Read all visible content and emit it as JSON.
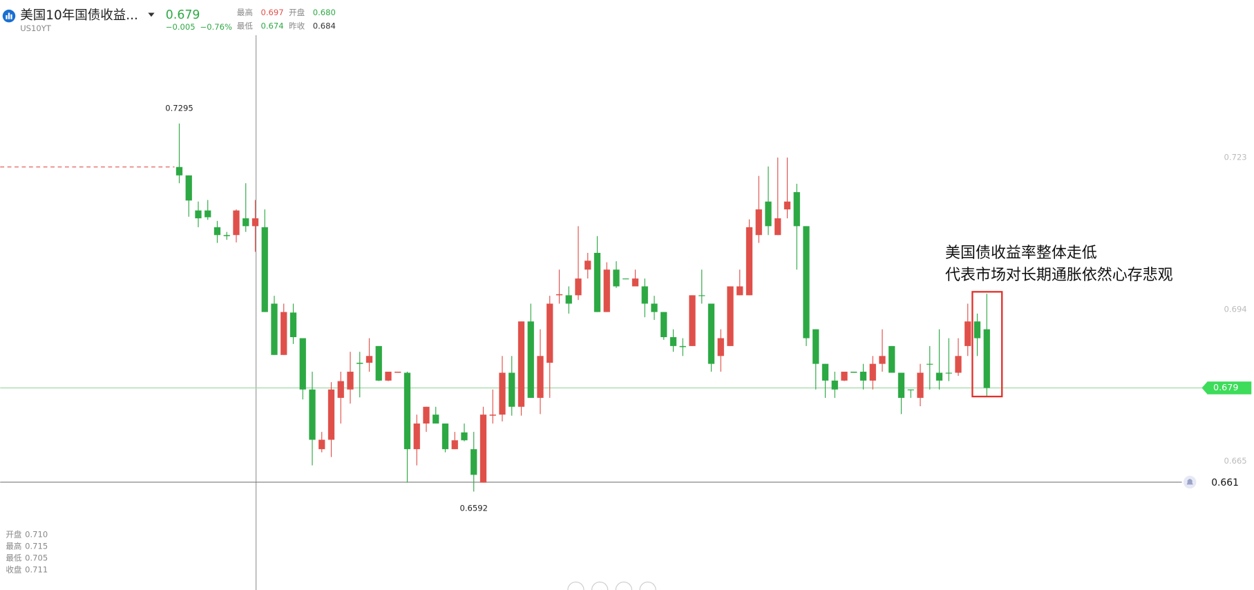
{
  "chart_data": {
    "type": "candlestick",
    "quote": {
      "title": "美国10年国债收益...",
      "symbol": "US10YT",
      "price": "0.679",
      "change": "−0.005",
      "change_pct": "−0.76%",
      "stats": [
        {
          "label": "最高",
          "value": "0.697",
          "color": "#e0504a"
        },
        {
          "label": "开盘",
          "value": "0.680",
          "color": "#2da944"
        },
        {
          "label": "最低",
          "value": "0.674",
          "color": "#2da944"
        },
        {
          "label": "昨收",
          "value": "0.684",
          "color": "#333333"
        }
      ]
    },
    "crosshair": [
      {
        "label": "开盘",
        "value": "0.710"
      },
      {
        "label": "最高",
        "value": "0.715"
      },
      {
        "label": "最低",
        "value": "0.705"
      },
      {
        "label": "收盘",
        "value": "0.711"
      }
    ],
    "annotation": [
      "美国债收益率整体走低",
      "代表市场对长期通胀依然心存悲观"
    ],
    "up_color": "#e0504a",
    "down_color": "#2da944",
    "ylim": [
      0.6404,
      0.7531
    ],
    "yticks": [
      0.723,
      0.694,
      0.665
    ],
    "alert_line": 0.661,
    "open": [
      0.7212,
      0.7196,
      0.7129,
      0.7129,
      0.7097,
      0.7082,
      0.7082,
      0.7114,
      0.7099,
      0.7097,
      0.6951,
      0.6853,
      0.6934,
      0.6885,
      0.6787,
      0.6673,
      0.6691,
      0.6771,
      0.6787,
      0.6838,
      0.6838,
      0.687,
      0.6804,
      0.6819,
      0.6819,
      0.6673,
      0.6722,
      0.6739,
      0.6722,
      0.6673,
      0.6705,
      0.6673,
      0.6609,
      0.6737,
      0.6739,
      0.6819,
      0.6754,
      0.6917,
      0.6771,
      0.6838,
      0.6967,
      0.6967,
      0.6967,
      0.7016,
      0.7048,
      0.6935,
      0.7016,
      0.6999,
      0.6984,
      0.6984,
      0.6951,
      0.6935,
      0.6887,
      0.687,
      0.687,
      0.6967,
      0.6951,
      0.6851,
      0.687,
      0.6967,
      0.6967,
      0.7082,
      0.7146,
      0.7082,
      0.7131,
      0.7164,
      0.7099,
      0.6902,
      0.6836,
      0.6804,
      0.6804,
      0.6821,
      0.6821,
      0.6804,
      0.6836,
      0.687,
      0.6819,
      0.6787,
      0.6771,
      0.6836,
      0.6819,
      0.6819,
      0.6819,
      0.687,
      0.6917,
      0.6902
    ],
    "high": [
      0.7295,
      0.7196,
      0.7146,
      0.7149,
      0.7109,
      0.7088,
      0.7131,
      0.7181,
      0.7149,
      0.7131,
      0.6966,
      0.6951,
      0.6951,
      0.6885,
      0.6821,
      0.6706,
      0.6801,
      0.6821,
      0.6859,
      0.6859,
      0.6885,
      0.687,
      0.6821,
      0.6821,
      0.6821,
      0.6739,
      0.6754,
      0.6754,
      0.6722,
      0.6706,
      0.6722,
      0.6706,
      0.6754,
      0.6787,
      0.6851,
      0.6851,
      0.6917,
      0.6951,
      0.6902,
      0.6966,
      0.7016,
      0.6984,
      0.7099,
      0.7048,
      0.708,
      0.703,
      0.7032,
      0.6999,
      0.7016,
      0.6999,
      0.6966,
      0.6935,
      0.6902,
      0.6885,
      0.6967,
      0.7016,
      0.6951,
      0.6902,
      0.6984,
      0.7016,
      0.7112,
      0.7195,
      0.7213,
      0.723,
      0.723,
      0.718,
      0.7099,
      0.6902,
      0.6836,
      0.6821,
      0.6821,
      0.6821,
      0.6836,
      0.6851,
      0.6902,
      0.687,
      0.6819,
      0.6787,
      0.6836,
      0.687,
      0.6902,
      0.6885,
      0.6885,
      0.6951,
      0.6932,
      0.697
    ],
    "low": [
      0.7181,
      0.7117,
      0.7097,
      0.7111,
      0.7067,
      0.7073,
      0.7068,
      0.7088,
      0.705,
      0.6935,
      0.6853,
      0.6853,
      0.6874,
      0.6768,
      0.6642,
      0.6667,
      0.6658,
      0.6722,
      0.676,
      0.6772,
      0.6821,
      0.6803,
      0.6803,
      0.6819,
      0.6609,
      0.6642,
      0.6706,
      0.6722,
      0.6667,
      0.6673,
      0.6688,
      0.6592,
      0.6609,
      0.6722,
      0.6726,
      0.6737,
      0.6737,
      0.6771,
      0.674,
      0.6771,
      0.6951,
      0.6932,
      0.6958,
      0.6999,
      0.6935,
      0.6935,
      0.6981,
      0.6998,
      0.6984,
      0.6925,
      0.692,
      0.6882,
      0.6859,
      0.6851,
      0.687,
      0.6951,
      0.6821,
      0.6821,
      0.687,
      0.6967,
      0.6967,
      0.7067,
      0.7082,
      0.7082,
      0.7114,
      0.7016,
      0.687,
      0.6787,
      0.6771,
      0.6771,
      0.6803,
      0.6819,
      0.6787,
      0.6787,
      0.6821,
      0.6819,
      0.674,
      0.6771,
      0.6755,
      0.6787,
      0.6787,
      0.6803,
      0.6813,
      0.6851,
      0.6851,
      0.6775
    ],
    "close": [
      0.7196,
      0.7148,
      0.7114,
      0.7116,
      0.7082,
      0.708,
      0.7129,
      0.7099,
      0.7114,
      0.6935,
      0.6853,
      0.6935,
      0.6887,
      0.6787,
      0.6691,
      0.6691,
      0.6787,
      0.6803,
      0.6821,
      0.6836,
      0.6851,
      0.6804,
      0.6821,
      0.6821,
      0.6673,
      0.6722,
      0.6754,
      0.6722,
      0.6673,
      0.669,
      0.669,
      0.6624,
      0.6739,
      0.6739,
      0.6819,
      0.6754,
      0.6917,
      0.6771,
      0.6851,
      0.6951,
      0.6969,
      0.6951,
      0.6999,
      0.7033,
      0.6935,
      0.7016,
      0.6984,
      0.6998,
      0.6999,
      0.6951,
      0.6935,
      0.6887,
      0.687,
      0.6868,
      0.6967,
      0.6966,
      0.6836,
      0.6885,
      0.6984,
      0.6984,
      0.7097,
      0.7131,
      0.7099,
      0.7114,
      0.7146,
      0.7099,
      0.6885,
      0.6836,
      0.6804,
      0.6787,
      0.6821,
      0.6819,
      0.6804,
      0.6836,
      0.6851,
      0.6819,
      0.6771,
      0.6786,
      0.6819,
      0.6835,
      0.6804,
      0.6818,
      0.6851,
      0.6917,
      0.6885,
      0.679
    ]
  }
}
